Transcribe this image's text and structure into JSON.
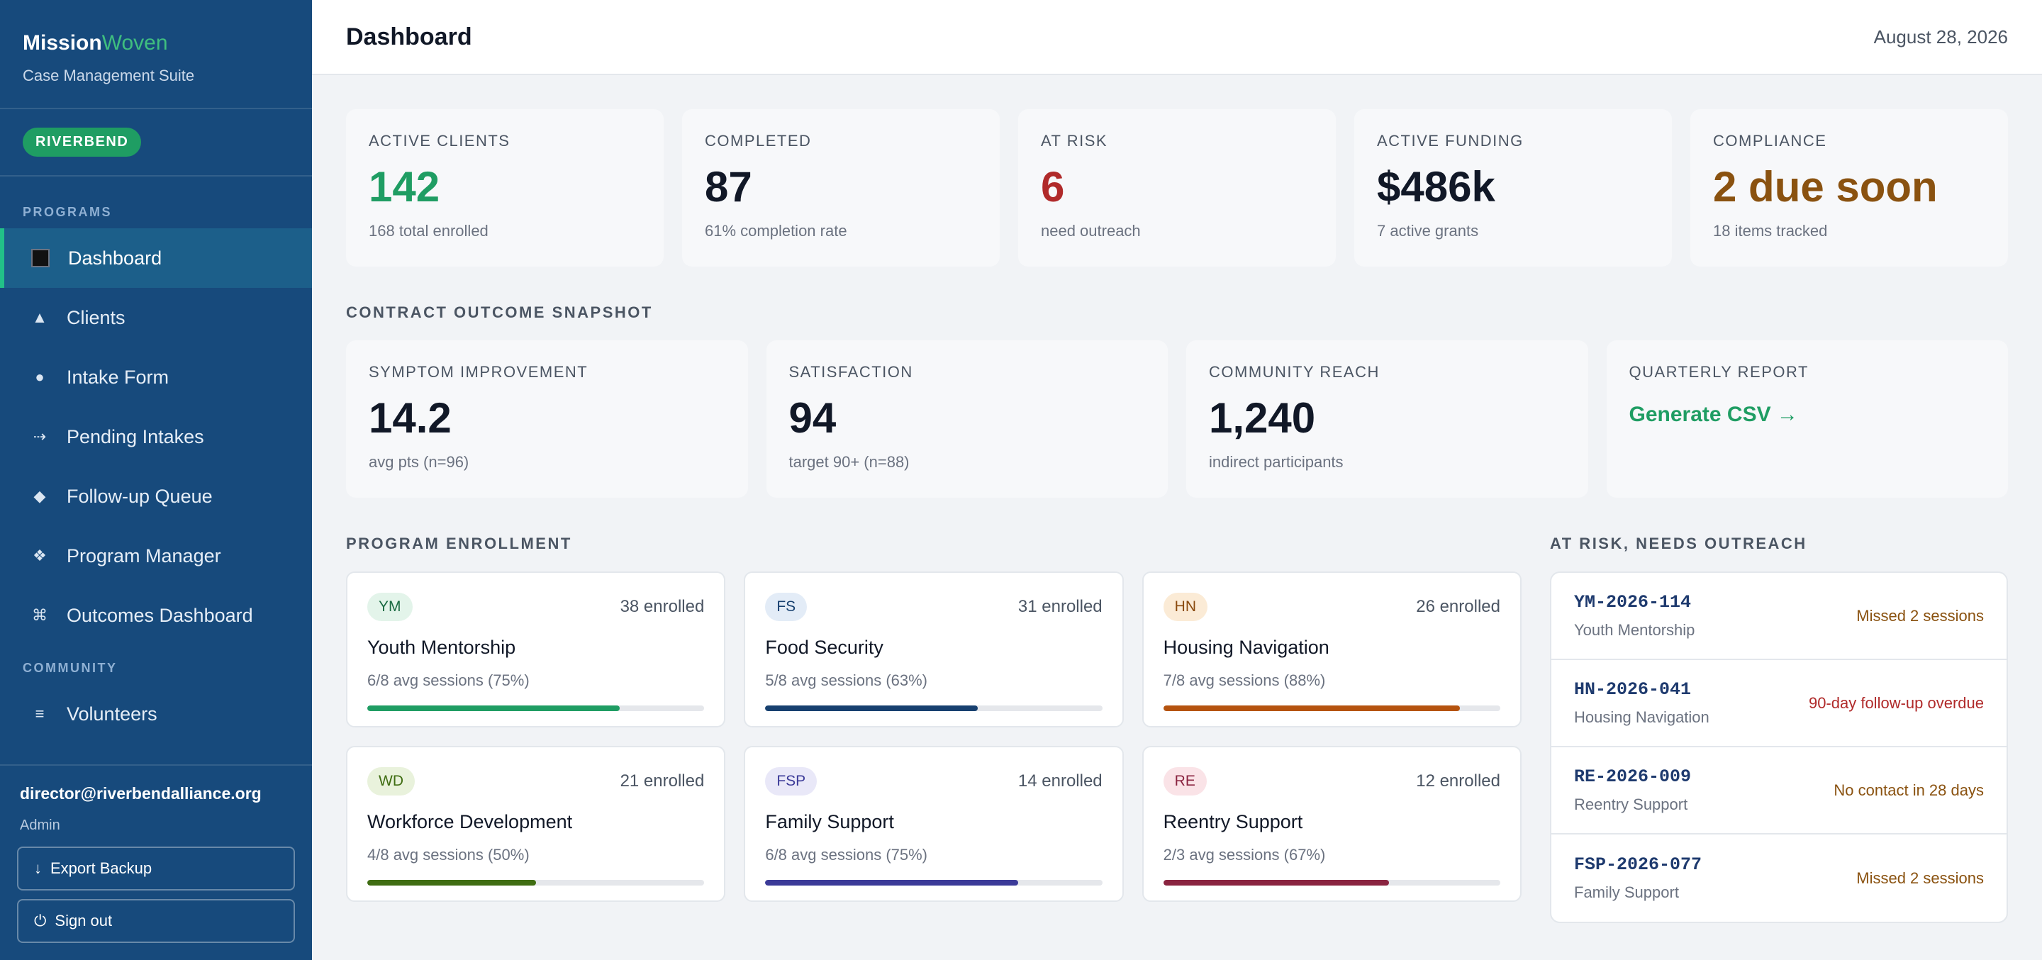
{
  "brand": {
    "name_main": "Mission",
    "name_accent": "Woven",
    "subtitle": "Case Management Suite",
    "accent_color": "#3fbf7f"
  },
  "org_badge": "RIVERBEND",
  "nav": {
    "programs_label": "PROGRAMS",
    "community_label": "COMMUNITY",
    "items": [
      {
        "label": "Dashboard",
        "icon": "dashboard-icon",
        "active": true
      },
      {
        "label": "Clients",
        "icon": "triangle-icon"
      },
      {
        "label": "Intake Form",
        "icon": "circle-icon"
      },
      {
        "label": "Pending Intakes",
        "icon": "dotted-arrow-icon"
      },
      {
        "label": "Follow-up Queue",
        "icon": "diamond-icon"
      },
      {
        "label": "Program Manager",
        "icon": "diamond-grid-icon"
      },
      {
        "label": "Outcomes Dashboard",
        "icon": "command-icon"
      }
    ],
    "community_items": [
      {
        "label": "Volunteers",
        "icon": "menu-lines-icon"
      }
    ]
  },
  "user": {
    "email": "director@riverbendalliance.org",
    "role": "Admin"
  },
  "footer_buttons": {
    "export": "Export Backup",
    "signout": "Sign out"
  },
  "header": {
    "title": "Dashboard",
    "date": "August 28, 2026"
  },
  "stats": [
    {
      "label": "ACTIVE CLIENTS",
      "value": "142",
      "sub": "168 total enrolled",
      "color": "#1f9d63"
    },
    {
      "label": "COMPLETED",
      "value": "87",
      "sub": "61% completion rate",
      "color": "#111827"
    },
    {
      "label": "AT RISK",
      "value": "6",
      "sub": "need outreach",
      "color": "#b02a2a"
    },
    {
      "label": "ACTIVE FUNDING",
      "value": "$486k",
      "sub": "7 active grants",
      "color": "#111827"
    },
    {
      "label": "COMPLIANCE",
      "value": "2 due soon",
      "sub": "18 items tracked",
      "color": "#8a5210"
    }
  ],
  "outcomes": {
    "title": "CONTRACT OUTCOME SNAPSHOT",
    "cards": [
      {
        "label": "SYMPTOM IMPROVEMENT",
        "value": "14.2",
        "sub": "avg pts (n=96)"
      },
      {
        "label": "SATISFACTION",
        "value": "94",
        "sub": "target 90+ (n=88)"
      },
      {
        "label": "COMMUNITY REACH",
        "value": "1,240",
        "sub": "indirect participants"
      }
    ],
    "report": {
      "label": "QUARTERLY REPORT",
      "link": "Generate CSV →"
    }
  },
  "enrollment": {
    "title": "PROGRAM ENROLLMENT",
    "programs": [
      {
        "code": "YM",
        "name": "Youth Mentorship",
        "enrolled": "38 enrolled",
        "sessions": "6/8 avg sessions (75%)",
        "progress": 0.75,
        "color": "#1f9d63",
        "badge_bg": "#e3f4ea",
        "badge_fg": "#1b6b43"
      },
      {
        "code": "FS",
        "name": "Food Security",
        "enrolled": "31 enrolled",
        "sessions": "5/8 avg sessions (63%)",
        "progress": 0.63,
        "color": "#17406f",
        "badge_bg": "#e3ecf7",
        "badge_fg": "#17406f"
      },
      {
        "code": "HN",
        "name": "Housing Navigation",
        "enrolled": "26 enrolled",
        "sessions": "7/8 avg sessions (88%)",
        "progress": 0.88,
        "color": "#b5530f",
        "badge_bg": "#fbebd6",
        "badge_fg": "#8a4a0e"
      },
      {
        "code": "WD",
        "name": "Workforce Development",
        "enrolled": "21 enrolled",
        "sessions": "4/8 avg sessions (50%)",
        "progress": 0.5,
        "color": "#3f6d12",
        "badge_bg": "#e9f2dc",
        "badge_fg": "#3f6d12"
      },
      {
        "code": "FSP",
        "name": "Family Support",
        "enrolled": "14 enrolled",
        "sessions": "6/8 avg sessions (75%)",
        "progress": 0.75,
        "color": "#3b3a98",
        "badge_bg": "#e9e8f8",
        "badge_fg": "#3b3a98"
      },
      {
        "code": "RE",
        "name": "Reentry Support",
        "enrolled": "12 enrolled",
        "sessions": "2/3 avg sessions (67%)",
        "progress": 0.67,
        "color": "#8a2440",
        "badge_bg": "#fae3e7",
        "badge_fg": "#8a2440"
      }
    ]
  },
  "at_risk": {
    "title": "AT RISK, NEEDS OUTREACH",
    "items": [
      {
        "id": "YM-2026-114",
        "program": "Youth Mentorship",
        "status": "Missed 2 sessions",
        "color": "#8a5210"
      },
      {
        "id": "HN-2026-041",
        "program": "Housing Navigation",
        "status": "90-day follow-up overdue",
        "color": "#b02a2a"
      },
      {
        "id": "RE-2026-009",
        "program": "Reentry Support",
        "status": "No contact in 28 days",
        "color": "#8a5210"
      },
      {
        "id": "FSP-2026-077",
        "program": "Family Support",
        "status": "Missed 2 sessions",
        "color": "#8a5210"
      }
    ]
  }
}
